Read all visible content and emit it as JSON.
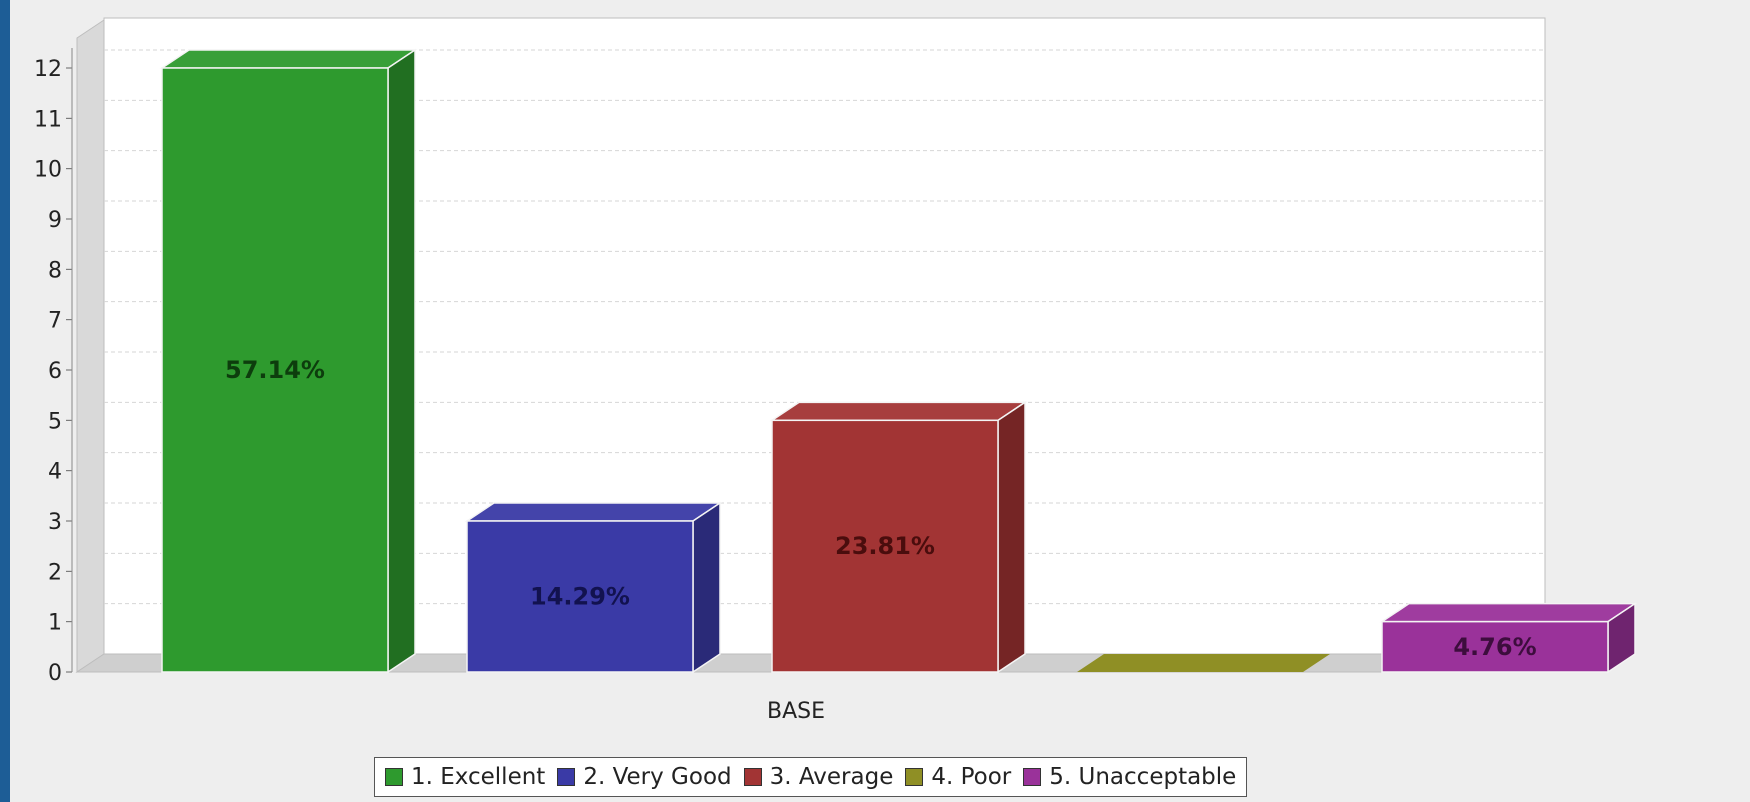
{
  "chart_data": {
    "type": "bar",
    "categories": [
      "BASE"
    ],
    "series": [
      {
        "name": "1. Excellent",
        "values": [
          12
        ],
        "label": "57.14%",
        "color": "#2e9a2e"
      },
      {
        "name": "2. Very Good",
        "values": [
          3
        ],
        "label": "14.29%",
        "color": "#3a3aa6"
      },
      {
        "name": "3. Average",
        "values": [
          5
        ],
        "label": "23.81%",
        "color": "#a23434"
      },
      {
        "name": "4. Poor",
        "values": [
          0
        ],
        "label": "",
        "color": "#8f8f25"
      },
      {
        "name": "5. Unacceptable",
        "values": [
          1
        ],
        "label": "4.76%",
        "color": "#9a329a"
      }
    ],
    "title": "",
    "xlabel": "",
    "ylabel": "",
    "ylim": [
      0,
      12
    ],
    "yticks": [
      "0",
      "1",
      "2",
      "3",
      "4",
      "5",
      "6",
      "7",
      "8",
      "9",
      "10",
      "11",
      "12"
    ],
    "grid": true,
    "legend": "bottom",
    "label_colors": {
      "1. Excellent": "#0d3d0d",
      "2. Very Good": "#12124f",
      "3. Average": "#4a0d0d",
      "5. Unacceptable": "#3d0d3d"
    }
  }
}
